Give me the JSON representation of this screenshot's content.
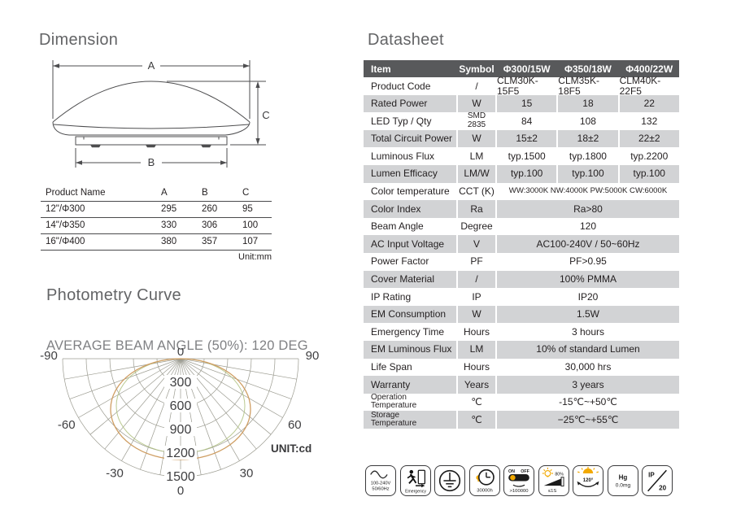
{
  "dimension": {
    "title": "Dimension",
    "labels": {
      "a": "A",
      "b": "B",
      "c": "C"
    },
    "table": {
      "headers": [
        "Product Name",
        "A",
        "B",
        "C"
      ],
      "rows": [
        [
          "12\"/Φ300",
          "295",
          "260",
          "95"
        ],
        [
          "14\"/Φ350",
          "330",
          "306",
          "100"
        ],
        [
          "16\"/Φ400",
          "380",
          "357",
          "107"
        ]
      ],
      "unit_note": "Unit:mm"
    }
  },
  "photometry": {
    "title": "Photometry Curve",
    "subtitle": "AVERAGE BEAM ANGLE (50%): 120 DEG",
    "unit_label": "UNIT:cd",
    "origin_label": "0",
    "bottom_angle_label": "0"
  },
  "chart_data": {
    "type": "line",
    "subtype": "polar-luminous-intensity",
    "title": "AVERAGE BEAM ANGLE (50%): 120 DEG",
    "unit": "cd",
    "angle_tick_labels_deg": [
      -90,
      -60,
      -30,
      0,
      30,
      60,
      90
    ],
    "ray_step_deg": 10,
    "radial_ticks_cd": [
      300,
      600,
      900,
      1200,
      1500
    ],
    "radial_max_cd": 1500,
    "series": [
      {
        "name": "luminous-intensity-curve",
        "angles_deg": [
          -90,
          -80,
          -70,
          -60,
          -50,
          -40,
          -30,
          -20,
          -10,
          0,
          10,
          20,
          30,
          40,
          50,
          60,
          70,
          80,
          90
        ],
        "values_cd": [
          0,
          420,
          760,
          1000,
          1150,
          1225,
          1260,
          1275,
          1280,
          1280,
          1280,
          1275,
          1260,
          1225,
          1150,
          1000,
          760,
          420,
          0
        ]
      }
    ]
  },
  "datasheet": {
    "title": "Datasheet",
    "table": {
      "headers": [
        "Item",
        "Symbol",
        "Φ300/15W",
        "Φ350/18W",
        "Φ400/22W"
      ],
      "rows": [
        {
          "item": "Product Code",
          "symbol": "/",
          "values": [
            "CLM30K-15F5",
            "CLM35K-18F5",
            "CLM40K-22F5"
          ]
        },
        {
          "item": "Rated Power",
          "symbol": "W",
          "values": [
            "15",
            "18",
            "22"
          ]
        },
        {
          "item": "LED Typ / Qty",
          "symbol": "SMD\n2835",
          "symbol_small": true,
          "values": [
            "84",
            "108",
            "132"
          ]
        },
        {
          "item": "Total Circuit Power",
          "symbol": "W",
          "values": [
            "15±2",
            "18±2",
            "22±2"
          ]
        },
        {
          "item": "Luminous Flux",
          "symbol": "LM",
          "values": [
            "typ.1500",
            "typ.1800",
            "typ.2200"
          ]
        },
        {
          "item": "Lumen Efficacy",
          "symbol": "LM/W",
          "values": [
            "typ.100",
            "typ.100",
            "typ.100"
          ]
        },
        {
          "item": "Color temperature",
          "symbol": "CCT (K)",
          "span": "WW:3000K NW:4000K PW:5000K CW:6000K",
          "span_small": true
        },
        {
          "item": "Color Index",
          "symbol": "Ra",
          "span": "Ra>80"
        },
        {
          "item": "Beam Angle",
          "symbol": "Degree",
          "span": "120"
        },
        {
          "item": "AC Input Voltage",
          "symbol": "V",
          "span": "AC100-240V / 50~60Hz"
        },
        {
          "item": "Power Factor",
          "symbol": "PF",
          "span": "PF>0.95"
        },
        {
          "item": "Cover Material",
          "symbol": "/",
          "span": "100% PMMA"
        },
        {
          "item": "IP Rating",
          "symbol": "IP",
          "span": "IP20"
        },
        {
          "item": "EM Consumption",
          "symbol": "W",
          "span": "1.5W"
        },
        {
          "item": "Emergency Time",
          "symbol": "Hours",
          "span": "3 hours"
        },
        {
          "item": "EM Luminous Flux",
          "symbol": "LM",
          "span": "10% of standard Lumen"
        },
        {
          "item": "Life Span",
          "symbol": "Hours",
          "span": "30,000 hrs"
        },
        {
          "item": "Warranty",
          "symbol": "Years",
          "span": "3 years"
        },
        {
          "item": "Operation\nTemperature",
          "symbol": "℃",
          "item_small": true,
          "span": "-15℃~+50℃"
        },
        {
          "item": "Storage\nTemperature",
          "symbol": "℃",
          "item_small": true,
          "span": "−25℃~+55℃"
        }
      ]
    }
  },
  "icons": [
    {
      "name": "ac-input-icon",
      "line1": "100-240V",
      "line2": "50/60Hz"
    },
    {
      "name": "emergency-icon",
      "label": "Emergency"
    },
    {
      "name": "earth-ground-icon"
    },
    {
      "name": "lifespan-clock-icon",
      "label": "30000h"
    },
    {
      "name": "switch-cycles-icon",
      "on": "ON",
      "off": "OFF",
      "label": ">100000"
    },
    {
      "name": "instant-start-icon",
      "percent": "80%",
      "label": "≤1S"
    },
    {
      "name": "beam-angle-icon",
      "label": "120°"
    },
    {
      "name": "mercury-free-icon",
      "line1": "Hg",
      "line2": "0.0mg"
    },
    {
      "name": "ip-rating-icon",
      "line1": "IP",
      "line2": "20"
    }
  ],
  "colors": {
    "header_bg": "#58595b",
    "alt_row_bg": "#d2d3d5",
    "heading_text": "#636466",
    "accent_yellow": "#f2a900",
    "curve_orange": "#cf9e63",
    "curve_green": "#aebf7e",
    "grid_line": "#9b9b90"
  }
}
